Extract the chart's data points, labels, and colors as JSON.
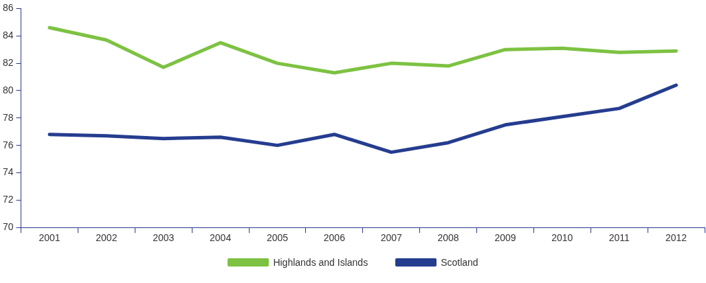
{
  "chart_data": {
    "type": "line",
    "categories": [
      "2001",
      "2002",
      "2003",
      "2004",
      "2005",
      "2006",
      "2007",
      "2008",
      "2009",
      "2010",
      "2011",
      "2012"
    ],
    "series": [
      {
        "name": "Highlands and Islands",
        "color": "#7dc242",
        "values": [
          84.6,
          83.7,
          81.7,
          83.5,
          82.0,
          81.3,
          82.0,
          81.8,
          83.0,
          83.1,
          82.8,
          82.9
        ]
      },
      {
        "name": "Scotland",
        "color": "#253d8f",
        "values": [
          76.8,
          76.7,
          76.5,
          76.6,
          76.0,
          76.8,
          75.5,
          76.2,
          77.5,
          78.1,
          78.7,
          80.4
        ]
      }
    ],
    "ylim": [
      70,
      86
    ],
    "yticks": [
      70,
      72,
      74,
      76,
      78,
      80,
      82,
      84,
      86
    ],
    "grid": false,
    "legend": "bottom",
    "marker": "none",
    "line_style": "solid"
  }
}
